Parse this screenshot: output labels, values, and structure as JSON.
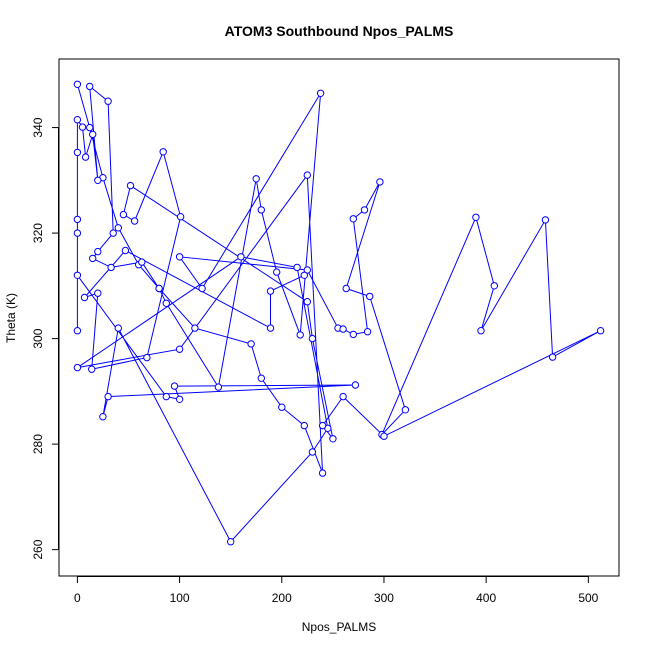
{
  "chart_data": {
    "type": "line",
    "title": "ATOM3 Southbound Npos_PALMS",
    "xlabel": "Npos_PALMS",
    "ylabel": "Theta (K)",
    "xlim": [
      -18,
      530
    ],
    "ylim": [
      255,
      353
    ],
    "xticks": [
      0,
      100,
      200,
      300,
      400,
      500
    ],
    "yticks": [
      260,
      280,
      300,
      320,
      340
    ],
    "grid": false,
    "legend": "none",
    "colors": {
      "series": "#0000ff",
      "axis": "#000000",
      "background": "#ffffff"
    },
    "series": [
      {
        "marker": "open-circle",
        "points": [
          [
            0,
            348.2
          ],
          [
            12,
            340.0
          ],
          [
            25,
            330.5
          ],
          [
            40,
            321.0
          ],
          [
            60,
            314.0
          ],
          [
            80,
            309.5
          ],
          [
            115,
            302.0
          ],
          [
            170,
            299.0
          ],
          [
            180,
            292.5
          ],
          [
            200,
            287.0
          ],
          [
            222,
            283.5
          ],
          [
            240,
            274.5
          ],
          [
            225,
            331.0
          ],
          [
            100,
            298.0
          ],
          [
            0,
            294.5
          ],
          [
            160,
            315.5
          ],
          [
            215,
            313.5
          ],
          [
            245,
            283.0
          ],
          [
            230,
            278.5
          ],
          [
            150,
            261.5
          ],
          [
            40,
            302.0
          ],
          [
            25,
            285.2
          ],
          [
            30,
            289.0
          ],
          [
            272,
            291.2
          ],
          [
            95,
            291.0
          ],
          [
            100,
            288.5
          ],
          [
            87,
            289.0
          ],
          [
            0,
            312.0
          ],
          [
            0,
            301.5
          ],
          [
            0,
            320.0
          ],
          [
            0,
            322.6
          ],
          [
            0,
            335.3
          ],
          [
            0,
            341.5
          ],
          [
            5,
            340.1
          ],
          [
            8,
            334.4
          ],
          [
            15,
            338.7
          ],
          [
            20,
            330.0
          ],
          [
            12,
            347.8
          ],
          [
            30,
            345.0
          ],
          [
            35,
            320.0
          ],
          [
            20,
            316.5
          ],
          [
            15,
            315.2
          ],
          [
            33,
            313.5
          ],
          [
            63,
            314.5
          ],
          [
            80,
            309.5
          ],
          [
            87,
            306.7
          ],
          [
            138,
            290.8
          ],
          [
            175,
            330.3
          ],
          [
            180,
            324.4
          ],
          [
            195,
            312.6
          ],
          [
            218,
            300.7
          ],
          [
            238,
            346.5
          ],
          [
            122,
            309.5
          ],
          [
            100,
            315.5
          ],
          [
            225,
            313.0
          ],
          [
            255,
            302.0
          ],
          [
            260,
            301.8
          ],
          [
            270,
            300.8
          ],
          [
            284,
            301.3
          ],
          [
            270,
            322.7
          ],
          [
            281,
            324.4
          ],
          [
            296,
            329.7
          ],
          [
            263,
            309.5
          ],
          [
            286,
            308.0
          ],
          [
            321,
            286.5
          ],
          [
            298,
            281.8
          ],
          [
            390,
            323.0
          ],
          [
            408,
            310.0
          ],
          [
            395,
            301.5
          ],
          [
            458,
            322.5
          ],
          [
            465,
            296.5
          ],
          [
            512,
            301.5
          ],
          [
            300,
            281.5
          ],
          [
            260,
            289.0
          ],
          [
            240,
            283.5
          ],
          [
            250,
            281.0
          ],
          [
            230,
            300.0
          ],
          [
            225,
            307.0
          ],
          [
            52,
            329.0
          ],
          [
            45,
            323.5
          ],
          [
            56,
            322.3
          ],
          [
            84,
            335.4
          ],
          [
            101,
            323.1
          ],
          [
            68,
            296.4
          ],
          [
            14,
            294.2
          ],
          [
            20,
            308.6
          ],
          [
            7,
            307.8
          ],
          [
            47,
            316.7
          ],
          [
            189,
            302.0
          ],
          [
            189,
            309.0
          ],
          [
            222,
            312.0
          ]
        ]
      }
    ]
  }
}
